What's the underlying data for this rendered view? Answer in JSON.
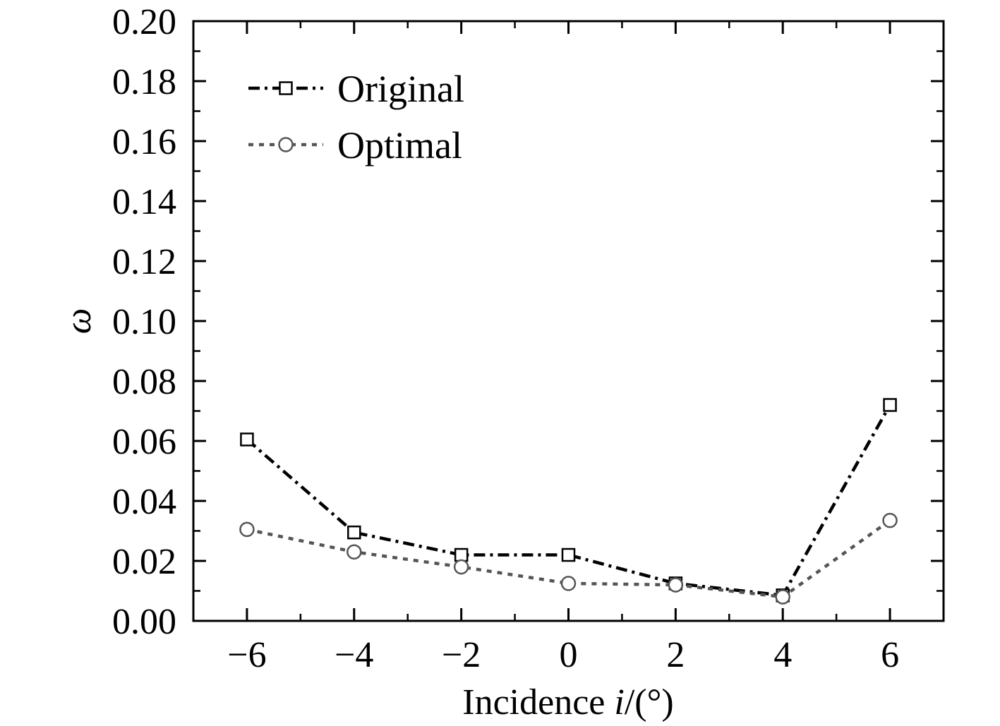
{
  "chart_data": {
    "type": "line",
    "title": "",
    "xlabel": {
      "prefix": "Incidence ",
      "italic": "i",
      "suffix": "/(°)"
    },
    "ylabel": "ω",
    "xlim": [
      -7,
      7
    ],
    "ylim": [
      0,
      0.2
    ],
    "x_ticks": [
      -6,
      -4,
      -2,
      0,
      2,
      4,
      6
    ],
    "x_tick_labels": [
      "−6",
      "−4",
      "−2",
      "0",
      "2",
      "4",
      "6"
    ],
    "x_minor_step": 1,
    "y_ticks": [
      0,
      0.02,
      0.04,
      0.06,
      0.08,
      0.1,
      0.12,
      0.14,
      0.16,
      0.18,
      0.2
    ],
    "y_tick_labels": [
      "0.00",
      "0.02",
      "0.04",
      "0.06",
      "0.08",
      "0.10",
      "0.12",
      "0.14",
      "0.16",
      "0.18",
      "0.20"
    ],
    "y_minor_step": 0.01,
    "grid": false,
    "legend_position": "top-left",
    "x": [
      -6,
      -4,
      -2,
      0,
      2,
      4,
      6
    ],
    "series": [
      {
        "name": "Original",
        "values": [
          0.0605,
          0.0295,
          0.022,
          0.022,
          0.0125,
          0.0085,
          0.072
        ],
        "marker": "square",
        "line_style": "dash-dot",
        "color": "#000000"
      },
      {
        "name": "Optimal",
        "values": [
          0.0305,
          0.023,
          0.018,
          0.0125,
          0.012,
          0.008,
          0.0335
        ],
        "marker": "circle",
        "line_style": "dotted",
        "color": "#555555"
      }
    ]
  }
}
